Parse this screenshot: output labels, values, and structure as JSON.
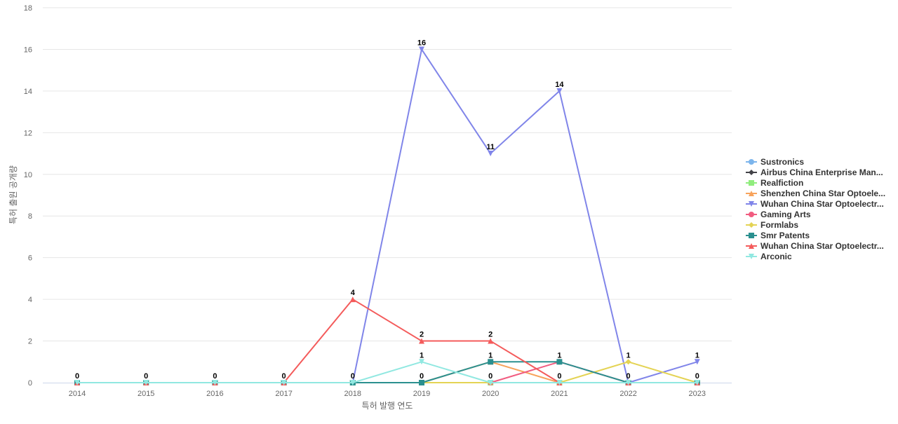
{
  "chart_data": {
    "type": "line",
    "title": "",
    "xlabel": "특허 발행 연도",
    "ylabel": "특허 출원 공개량",
    "x": [
      "2014",
      "2015",
      "2016",
      "2017",
      "2018",
      "2019",
      "2020",
      "2021",
      "2022",
      "2023"
    ],
    "ylim": [
      0,
      18
    ],
    "yticks": [
      0,
      2,
      4,
      6,
      8,
      10,
      12,
      14,
      16,
      18
    ],
    "grid": true,
    "legend_position": "right",
    "series": [
      {
        "name": "Sustronics",
        "color": "#7cb5ec",
        "marker": "circle",
        "values": [
          0,
          0,
          0,
          0,
          0,
          0,
          0,
          0,
          0,
          0
        ]
      },
      {
        "name": "Airbus China Enterprise Man...",
        "color": "#434348",
        "marker": "diamond",
        "values": [
          0,
          0,
          0,
          0,
          0,
          0,
          0,
          0,
          0,
          0
        ]
      },
      {
        "name": "Realfiction",
        "color": "#90ed7d",
        "marker": "square",
        "values": [
          0,
          0,
          0,
          0,
          0,
          0,
          0,
          0,
          0,
          0
        ]
      },
      {
        "name": "Shenzhen China Star Optoele...",
        "color": "#f7a35c",
        "marker": "triangle",
        "values": [
          0,
          0,
          0,
          0,
          0,
          0,
          1,
          0,
          0,
          0
        ]
      },
      {
        "name": "Wuhan China Star Optoelectr...",
        "color": "#8085e9",
        "marker": "triangle-down",
        "values": [
          0,
          0,
          0,
          0,
          0,
          16,
          11,
          14,
          0,
          1
        ]
      },
      {
        "name": "Gaming Arts",
        "color": "#f15c80",
        "marker": "circle",
        "values": [
          0,
          0,
          0,
          0,
          0,
          0,
          0,
          1,
          0,
          0
        ]
      },
      {
        "name": "Formlabs",
        "color": "#e4d354",
        "marker": "diamond",
        "values": [
          0,
          0,
          0,
          0,
          0,
          0,
          0,
          0,
          1,
          0
        ]
      },
      {
        "name": "Smr Patents",
        "color": "#2b908f",
        "marker": "square",
        "values": [
          0,
          0,
          0,
          0,
          0,
          0,
          1,
          1,
          0,
          0
        ]
      },
      {
        "name": "Wuhan China Star Optoelectr...",
        "color": "#f45b5b",
        "marker": "triangle",
        "values": [
          0,
          0,
          0,
          0,
          4,
          2,
          2,
          0,
          0,
          0
        ]
      },
      {
        "name": "Arconic",
        "color": "#91e8e1",
        "marker": "triangle-down",
        "values": [
          0,
          0,
          0,
          0,
          0,
          1,
          0,
          0,
          0,
          0
        ]
      }
    ],
    "data_labels": [
      {
        "x": "2014",
        "value": "0"
      },
      {
        "x": "2015",
        "value": "0"
      },
      {
        "x": "2016",
        "value": "0"
      },
      {
        "x": "2017",
        "value": "0"
      },
      {
        "x": "2018",
        "value": "4"
      },
      {
        "x": "2018",
        "value": "0"
      },
      {
        "x": "2019",
        "value": "16"
      },
      {
        "x": "2019",
        "value": "2"
      },
      {
        "x": "2019",
        "value": "1"
      },
      {
        "x": "2019",
        "value": "0"
      },
      {
        "x": "2020",
        "value": "11"
      },
      {
        "x": "2020",
        "value": "2"
      },
      {
        "x": "2020",
        "value": "1"
      },
      {
        "x": "2020",
        "value": "0"
      },
      {
        "x": "2021",
        "value": "14"
      },
      {
        "x": "2021",
        "value": "1"
      },
      {
        "x": "2021",
        "value": "0"
      },
      {
        "x": "2022",
        "value": "1"
      },
      {
        "x": "2022",
        "value": "0"
      },
      {
        "x": "2023",
        "value": "1"
      },
      {
        "x": "2023",
        "value": "0"
      }
    ]
  }
}
